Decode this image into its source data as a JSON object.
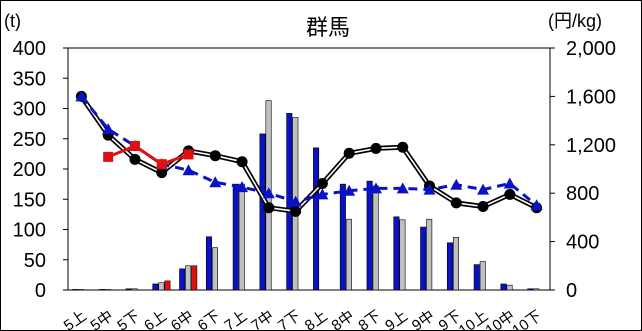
{
  "chart_data": {
    "type": "bar+line",
    "title": "群馬",
    "y_left_unit": "(t)",
    "y_right_unit": "(円/kg)",
    "y_left_ticks": [
      "0",
      "50",
      "100",
      "150",
      "200",
      "250",
      "300",
      "350",
      "400"
    ],
    "y_right_ticks": [
      "0",
      "400",
      "800",
      "1,200",
      "1,600",
      "2,000"
    ],
    "ylim_left": [
      0,
      400
    ],
    "ylim_right": [
      0,
      2000
    ],
    "categories": [
      "5上",
      "5中",
      "5下",
      "6上",
      "6中",
      "6下",
      "7上",
      "7中",
      "7下",
      "8上",
      "8中",
      "8下",
      "9上",
      "9中",
      "9下",
      "10上",
      "10中",
      "10下"
    ],
    "bar_series": [
      {
        "color": "#0a12c8",
        "values": [
          1,
          1,
          2,
          10,
          35,
          88,
          175,
          258,
          292,
          235,
          175,
          180,
          121,
          104,
          78,
          42,
          10,
          2
        ]
      },
      {
        "color": "#c0c0c0",
        "values": [
          1,
          1,
          2,
          12,
          40,
          70,
          175,
          313,
          285,
          null,
          117,
          172,
          116,
          117,
          87,
          47,
          8,
          2
        ]
      },
      {
        "color": "#e01010",
        "values": [
          null,
          null,
          null,
          15,
          40,
          null,
          null,
          null,
          null,
          null,
          null,
          null,
          null,
          null,
          null,
          null,
          null,
          null
        ]
      }
    ],
    "line_series": [
      {
        "color": "#000000",
        "style": "double-black-circle",
        "values": [
          1600,
          1280,
          1080,
          970,
          1150,
          1110,
          1060,
          680,
          650,
          880,
          1130,
          1170,
          1180,
          860,
          720,
          690,
          790,
          680
        ]
      },
      {
        "color": "#0a12c8",
        "style": "dashed-triangle",
        "values": [
          1600,
          1330,
          1190,
          1040,
          990,
          890,
          850,
          800,
          730,
          790,
          820,
          840,
          840,
          830,
          870,
          830,
          880,
          700
        ]
      },
      {
        "color": "#e01010",
        "style": "solid-square",
        "values": [
          null,
          1100,
          1190,
          1040,
          1120,
          null,
          null,
          null,
          null,
          null,
          null,
          null,
          null,
          null,
          null,
          null,
          null,
          null
        ]
      }
    ]
  }
}
